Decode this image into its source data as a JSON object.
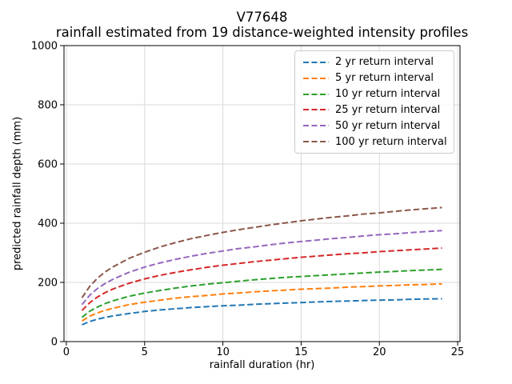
{
  "title": {
    "line1": "V77648",
    "line2": "rainfall estimated from 19 distance-weighted intensity profiles"
  },
  "colors": {
    "spine": "#000000",
    "grid": "#d9d9d9",
    "background": "#ffffff"
  },
  "chart_data": {
    "type": "line",
    "title": "V77648 — rainfall estimated from 19 distance-weighted intensity profiles",
    "xlabel": "rainfall duration (hr)",
    "ylabel": "predicted rainfall depth (mm)",
    "xlim": [
      -0.15,
      25.15
    ],
    "ylim": [
      0,
      1000
    ],
    "xticks": [
      0,
      5,
      10,
      15,
      20,
      25
    ],
    "yticks": [
      0,
      200,
      400,
      600,
      800,
      1000
    ],
    "grid": true,
    "legend_position": "upper right",
    "line_style": "dashed",
    "x": [
      1,
      1.5,
      2,
      2.5,
      3,
      4,
      5,
      6,
      7,
      8,
      9,
      10,
      11,
      12,
      13,
      14,
      15,
      16,
      17,
      18,
      19,
      20,
      21,
      22,
      23,
      24
    ],
    "series": [
      {
        "name": "2 yr return interval",
        "color": "#1f77b4",
        "values": [
          57,
          68,
          76,
          82,
          87,
          95,
          102,
          107,
          111,
          115,
          118,
          121,
          123,
          126,
          128,
          130,
          132,
          134,
          136,
          137,
          139,
          140,
          141,
          143,
          144,
          145
        ]
      },
      {
        "name": "5 yr return interval",
        "color": "#ff7f0e",
        "values": [
          70,
          86,
          97,
          106,
          113,
          125,
          133,
          140,
          147,
          152,
          156,
          161,
          164,
          168,
          171,
          174,
          177,
          179,
          181,
          184,
          186,
          188,
          190,
          192,
          193,
          195
        ]
      },
      {
        "name": "10 yr return interval",
        "color": "#2ca02c",
        "values": [
          82,
          103,
          117,
          129,
          138,
          153,
          164,
          173,
          181,
          188,
          194,
          199,
          204,
          209,
          213,
          217,
          220,
          223,
          226,
          229,
          232,
          235,
          237,
          240,
          242,
          244
        ]
      },
      {
        "name": "25 yr return interval",
        "color": "#d62728",
        "values": [
          105,
          132,
          151,
          166,
          178,
          197,
          212,
          224,
          234,
          243,
          251,
          258,
          264,
          270,
          275,
          280,
          285,
          289,
          293,
          297,
          300,
          304,
          307,
          310,
          313,
          316
        ]
      },
      {
        "name": "50 yr return interval",
        "color": "#9467bd",
        "values": [
          125,
          157,
          180,
          197,
          211,
          234,
          252,
          266,
          278,
          289,
          298,
          306,
          314,
          320,
          327,
          333,
          338,
          343,
          348,
          352,
          357,
          361,
          364,
          368,
          372,
          375
        ]
      },
      {
        "name": "100 yr return interval",
        "color": "#8c564b",
        "values": [
          148,
          187,
          215,
          236,
          253,
          281,
          302,
          320,
          335,
          348,
          359,
          369,
          378,
          386,
          394,
          401,
          408,
          414,
          420,
          425,
          431,
          435,
          440,
          445,
          449,
          453
        ]
      }
    ]
  }
}
